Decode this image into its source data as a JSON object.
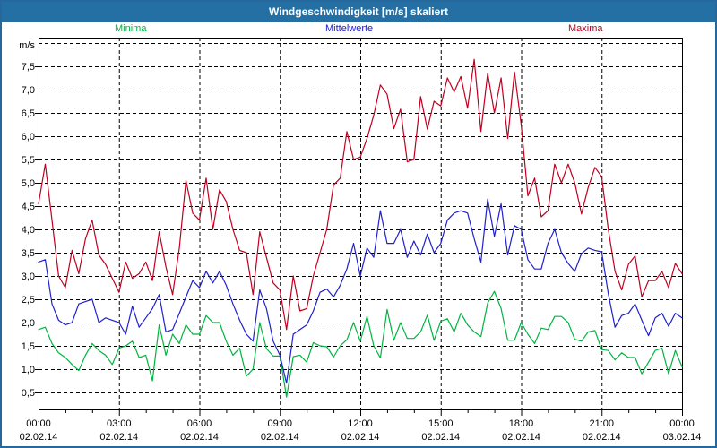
{
  "window": {
    "title": "Windgeschwindigkeit [m/s] skaliert"
  },
  "colors": {
    "title_bar": "#2470A4",
    "window_border": "#26689B",
    "plot_frame": "#000000",
    "grid": "#000000",
    "background": "#FFFFFF",
    "minima": "#00B440",
    "mittelwerte": "#2020CC",
    "maxima": "#C00020"
  },
  "chart_data": {
    "type": "line",
    "title": "Windgeschwindigkeit [m/s] skaliert",
    "ylabel": "m/s",
    "grid": "dashed",
    "legend_position": "top",
    "x": {
      "start_hour": 0.0,
      "end_hour": 24.0,
      "step_hours": 0.25,
      "unit": "time of day, 02.02.14 00:00 - 03.02.14 00:00"
    },
    "x_axis": {
      "minor_tick_every_hours": 1,
      "major_tick_every_hours": 3,
      "ticks": [
        {
          "hour": 0,
          "time": "00:00",
          "date": "02.02.14"
        },
        {
          "hour": 3,
          "time": "03:00",
          "date": "02.02.14"
        },
        {
          "hour": 6,
          "time": "06:00",
          "date": "02.02.14"
        },
        {
          "hour": 9,
          "time": "09:00",
          "date": "02.02.14"
        },
        {
          "hour": 12,
          "time": "12:00",
          "date": "02.02.14"
        },
        {
          "hour": 15,
          "time": "15:00",
          "date": "02.02.14"
        },
        {
          "hour": 18,
          "time": "18:00",
          "date": "02.02.14"
        },
        {
          "hour": 21,
          "time": "21:00",
          "date": "02.02.14"
        },
        {
          "hour": 24,
          "time": "00:00",
          "date": "03.02.14"
        }
      ]
    },
    "y_axis": {
      "label": "m/s",
      "ylim": [
        0.135,
        8.115
      ],
      "gridline_step": 0.5,
      "gridline_values": [
        0.5,
        1.0,
        1.5,
        2.0,
        2.5,
        3.0,
        3.5,
        4.0,
        4.5,
        5.0,
        5.5,
        6.0,
        6.5,
        7.0,
        7.5,
        8.0
      ],
      "ticks": [
        {
          "value": 0.5,
          "label": "0,5"
        },
        {
          "value": 1.0,
          "label": "1,0"
        },
        {
          "value": 1.5,
          "label": "1,5"
        },
        {
          "value": 2.0,
          "label": "2,0"
        },
        {
          "value": 2.5,
          "label": "2,5"
        },
        {
          "value": 3.0,
          "label": "3,0"
        },
        {
          "value": 3.5,
          "label": "3,5"
        },
        {
          "value": 4.0,
          "label": "4,0"
        },
        {
          "value": 4.5,
          "label": "4,5"
        },
        {
          "value": 5.0,
          "label": "5,0"
        },
        {
          "value": 5.5,
          "label": "5,5"
        },
        {
          "value": 6.0,
          "label": "6,0"
        },
        {
          "value": 6.5,
          "label": "6,5"
        },
        {
          "value": 7.0,
          "label": "7,0"
        },
        {
          "value": 7.5,
          "label": "7,5"
        }
      ]
    },
    "series": [
      {
        "name": "Minima",
        "color": "#00B440",
        "values": [
          1.85,
          1.9,
          1.55,
          1.35,
          1.25,
          1.1,
          0.97,
          1.3,
          1.55,
          1.4,
          1.3,
          1.1,
          1.45,
          1.5,
          1.6,
          1.25,
          1.3,
          0.75,
          1.95,
          1.3,
          1.75,
          1.55,
          1.95,
          1.75,
          1.75,
          2.15,
          2.0,
          2.0,
          1.6,
          1.3,
          1.45,
          0.85,
          1.0,
          2.0,
          1.44,
          1.28,
          1.28,
          0.4,
          1.27,
          1.3,
          1.15,
          1.57,
          1.5,
          1.48,
          1.26,
          1.5,
          1.63,
          2.0,
          1.6,
          2.13,
          1.5,
          1.24,
          2.28,
          1.62,
          2.0,
          1.66,
          1.66,
          1.8,
          2.16,
          1.62,
          2.03,
          2.08,
          1.8,
          2.2,
          1.95,
          1.8,
          1.7,
          2.42,
          2.67,
          2.3,
          1.62,
          1.62,
          2.0,
          1.75,
          1.55,
          1.88,
          1.85,
          2.13,
          2.13,
          2.0,
          1.64,
          1.6,
          1.8,
          1.83,
          1.42,
          1.4,
          1.2,
          1.35,
          1.25,
          1.25,
          0.9,
          1.15,
          1.4,
          1.45,
          0.9,
          1.4,
          1.05
        ]
      },
      {
        "name": "Mittelwerte",
        "color": "#2020CC",
        "values": [
          3.3,
          3.35,
          2.4,
          2.05,
          1.95,
          2.0,
          2.4,
          2.45,
          2.5,
          2.0,
          2.1,
          2.05,
          2.0,
          1.75,
          2.35,
          1.9,
          2.1,
          2.3,
          2.6,
          1.8,
          1.85,
          2.2,
          2.55,
          2.9,
          2.75,
          3.1,
          2.85,
          3.1,
          2.8,
          2.4,
          2.05,
          1.75,
          1.6,
          2.7,
          2.3,
          1.6,
          1.3,
          0.7,
          1.75,
          1.85,
          1.95,
          2.25,
          2.65,
          2.72,
          2.55,
          2.8,
          3.15,
          3.7,
          3.0,
          3.6,
          3.4,
          4.4,
          3.7,
          3.7,
          4.0,
          3.4,
          3.75,
          3.45,
          3.9,
          3.5,
          3.7,
          4.2,
          4.35,
          4.4,
          4.35,
          3.8,
          3.3,
          4.65,
          3.85,
          4.55,
          3.45,
          4.08,
          4.0,
          3.35,
          3.15,
          3.15,
          3.7,
          4.0,
          3.5,
          3.27,
          3.1,
          3.48,
          3.6,
          3.55,
          3.52,
          2.62,
          1.9,
          2.15,
          2.2,
          2.4,
          2.05,
          1.72,
          2.1,
          2.2,
          1.92,
          2.2,
          2.1
        ]
      },
      {
        "name": "Maxima",
        "color": "#C00020",
        "values": [
          4.55,
          5.4,
          4.2,
          3.0,
          2.75,
          3.55,
          3.05,
          3.8,
          4.2,
          3.45,
          3.25,
          2.95,
          2.65,
          3.3,
          2.95,
          3.05,
          3.3,
          2.9,
          3.95,
          3.2,
          2.6,
          3.6,
          5.05,
          4.35,
          4.2,
          5.1,
          4.0,
          4.85,
          4.6,
          4.0,
          3.55,
          3.5,
          2.6,
          3.95,
          3.4,
          2.85,
          2.7,
          1.85,
          3.0,
          2.25,
          2.3,
          3.0,
          3.5,
          4.0,
          4.95,
          5.1,
          6.1,
          5.5,
          5.55,
          5.95,
          6.45,
          7.1,
          6.9,
          6.16,
          6.58,
          5.45,
          5.5,
          6.85,
          6.15,
          6.75,
          6.65,
          7.25,
          6.95,
          7.28,
          6.6,
          7.65,
          6.1,
          7.35,
          6.5,
          7.25,
          5.95,
          7.38,
          6.25,
          4.72,
          5.1,
          4.27,
          4.4,
          5.4,
          5.0,
          5.4,
          5.0,
          4.33,
          4.9,
          5.33,
          5.13,
          4.0,
          3.1,
          2.7,
          3.25,
          3.43,
          2.55,
          2.9,
          2.9,
          3.1,
          2.75,
          3.27,
          3.05
        ]
      }
    ]
  }
}
